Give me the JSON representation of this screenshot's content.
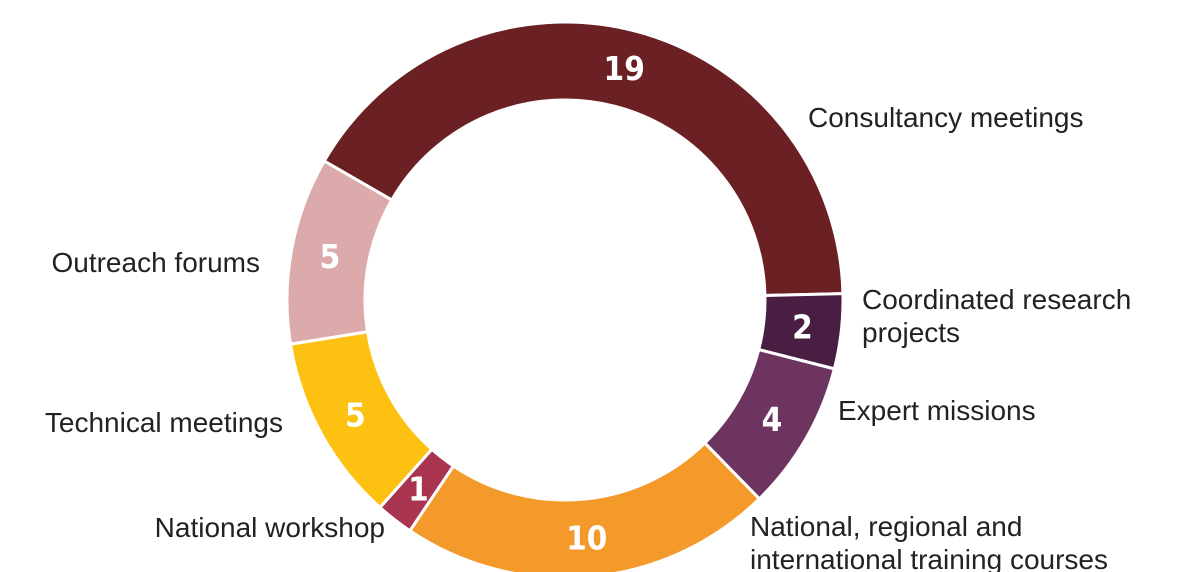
{
  "chart_data": {
    "type": "pie",
    "categories": [
      "Consultancy meetings",
      "Coordinated research projects",
      "Expert missions",
      "National, regional and international training courses",
      "National workshop",
      "Technical meetings",
      "Outreach forums"
    ],
    "values": [
      19,
      2,
      4,
      10,
      1,
      5,
      5
    ],
    "colors": [
      "#6b2024",
      "#4a1d42",
      "#6e3460",
      "#f39a2b",
      "#a8344f",
      "#fdc112",
      "#dcaaaa"
    ]
  }
}
